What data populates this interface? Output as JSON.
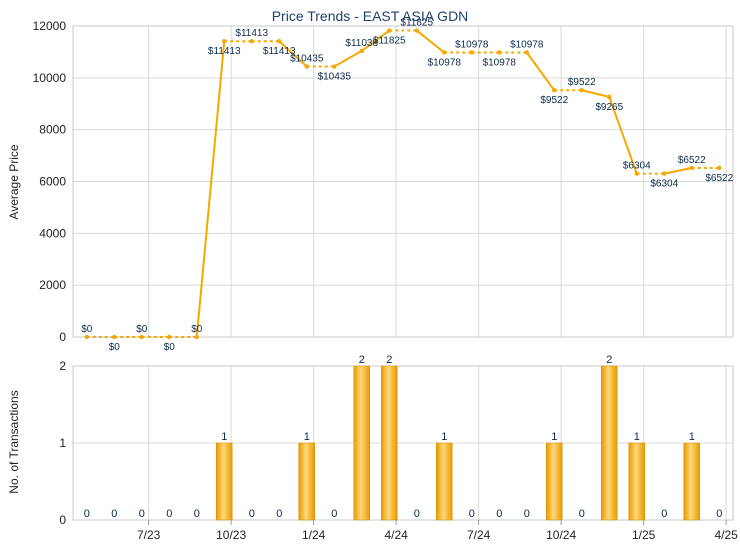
{
  "chart_data": [
    {
      "type": "line",
      "title": "Price Trends - EAST ASIA GDN",
      "ylabel": "Average Price",
      "ylim": [
        0,
        12000
      ],
      "yticks": [
        "0",
        "2000",
        "4000",
        "6000",
        "8000",
        "10000",
        "12000"
      ],
      "grid": true,
      "color": "#f5a800",
      "series": [
        {
          "values": [
            0,
            0,
            0,
            0,
            0,
            11413,
            11413,
            11413,
            10435,
            10435,
            11038,
            11825,
            11825,
            10978,
            10978,
            10978,
            10978,
            9522,
            9522,
            9265,
            6304,
            6304,
            6522,
            6522
          ],
          "labels": [
            "$0",
            "$0",
            "$0",
            "$0",
            "$0",
            "$11413",
            "$11413",
            "$11413",
            "$10435",
            "$10435",
            "$11038",
            "$11825",
            "$11825",
            "$10978",
            "$10978",
            "$10978",
            "$10978",
            "$9522",
            "$9522",
            "$9265",
            "$6304",
            "$6304",
            "$6522",
            "$6522"
          ]
        }
      ]
    },
    {
      "type": "bar",
      "ylabel": "No. of Transactions",
      "ylim": [
        0,
        2
      ],
      "yticks": [
        "0",
        "1",
        "2"
      ],
      "xticks": [
        "7/23",
        "10/23",
        "1/24",
        "4/24",
        "7/24",
        "10/24",
        "1/25",
        "4/25"
      ],
      "grid": true,
      "color": "#f5a800",
      "series": [
        {
          "values": [
            0,
            0,
            0,
            0,
            0,
            1,
            0,
            0,
            1,
            0,
            2,
            2,
            0,
            1,
            0,
            0,
            0,
            1,
            0,
            2,
            1,
            0,
            1,
            0
          ]
        }
      ]
    }
  ]
}
